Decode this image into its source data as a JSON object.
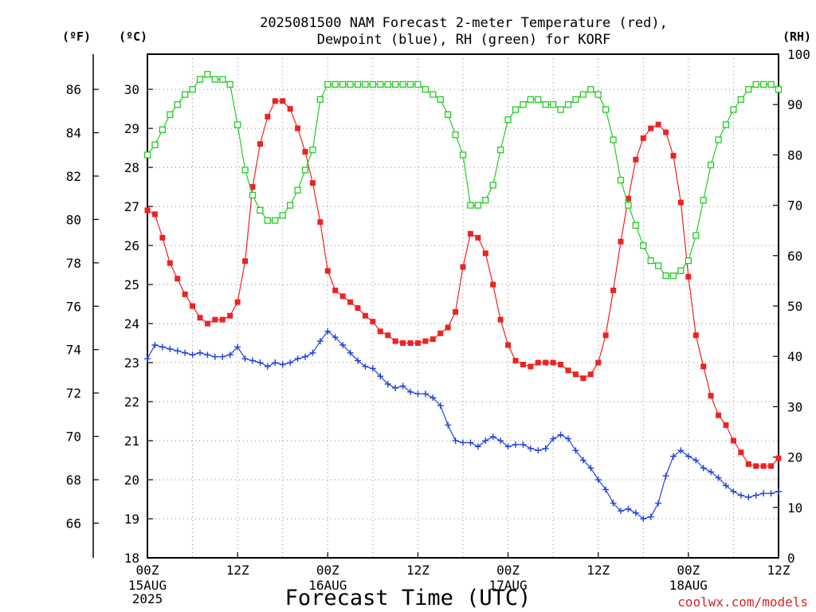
{
  "chart_data": {
    "type": "line",
    "title_line1": "2025081500 NAM Forecast 2-meter Temperature (red),",
    "title_line2": "Dewpoint (blue), RH (green) for KORF",
    "xlabel": "Forecast Time (UTC)",
    "credit": "coolwx.com/models",
    "unit_f": "(ºF)",
    "unit_c": "(ºC)",
    "unit_rh": "(RH)",
    "x_hours_range": [
      0,
      84
    ],
    "celsius_range": [
      18,
      30.9
    ],
    "fahrenheit_ticks": [
      "66",
      "68",
      "70",
      "72",
      "74",
      "76",
      "78",
      "80",
      "82",
      "84",
      "86"
    ],
    "celsius_ticks": [
      "18",
      "19",
      "20",
      "21",
      "22",
      "23",
      "24",
      "25",
      "26",
      "27",
      "28",
      "29",
      "30"
    ],
    "rh_range": [
      0,
      100
    ],
    "rh_ticks": [
      "0",
      "10",
      "20",
      "30",
      "40",
      "50",
      "60",
      "70",
      "80",
      "90",
      "100"
    ],
    "x_ticks": [
      {
        "h": 0,
        "label": "00Z"
      },
      {
        "h": 12,
        "label": "12Z"
      },
      {
        "h": 24,
        "label": "00Z"
      },
      {
        "h": 36,
        "label": "12Z"
      },
      {
        "h": 48,
        "label": "00Z"
      },
      {
        "h": 60,
        "label": "12Z"
      },
      {
        "h": 72,
        "label": "00Z"
      },
      {
        "h": 84,
        "label": "12Z"
      }
    ],
    "date_labels": [
      {
        "h": 0,
        "lines": [
          "15AUG",
          "2025"
        ]
      },
      {
        "h": 24,
        "lines": [
          "16AUG"
        ]
      },
      {
        "h": 48,
        "lines": [
          "17AUG"
        ]
      },
      {
        "h": 72,
        "lines": [
          "18AUG"
        ]
      }
    ],
    "grid": true,
    "series": [
      {
        "name": "Temperature",
        "color": "#ee2222",
        "marker": "square-filled",
        "x": [
          0,
          1,
          2,
          3,
          4,
          5,
          6,
          7,
          8,
          9,
          10,
          11,
          12,
          13,
          14,
          15,
          16,
          17,
          18,
          19,
          20,
          21,
          22,
          23,
          24,
          25,
          26,
          27,
          28,
          29,
          30,
          31,
          32,
          33,
          34,
          35,
          36,
          37,
          38,
          39,
          40,
          41,
          42,
          43,
          44,
          45,
          46,
          47,
          48,
          49,
          50,
          51,
          52,
          53,
          54,
          55,
          56,
          57,
          58,
          59,
          60,
          61,
          62,
          63,
          64,
          65,
          66,
          67,
          68,
          69,
          70,
          71,
          72,
          73,
          74,
          75,
          76,
          77,
          78,
          79,
          80,
          81,
          82,
          83,
          84
        ],
        "values": [
          26.9,
          26.8,
          26.2,
          25.55,
          25.15,
          24.75,
          24.45,
          24.15,
          24.0,
          24.1,
          24.1,
          24.2,
          24.55,
          25.6,
          27.5,
          28.6,
          29.3,
          29.7,
          29.7,
          29.5,
          29.0,
          28.4,
          27.6,
          26.6,
          25.35,
          24.85,
          24.7,
          24.55,
          24.4,
          24.2,
          24.05,
          23.8,
          23.7,
          23.55,
          23.5,
          23.5,
          23.5,
          23.55,
          23.6,
          23.75,
          23.9,
          24.3,
          25.45,
          26.3,
          26.2,
          25.8,
          25.0,
          24.1,
          23.45,
          23.05,
          22.95,
          22.9,
          23.0,
          23.0,
          23.0,
          22.95,
          22.8,
          22.7,
          22.6,
          22.7,
          23.0,
          23.7,
          24.85,
          26.1,
          27.2,
          28.2,
          28.75,
          29.0,
          29.1,
          28.9,
          28.3,
          27.1,
          25.2,
          23.7,
          22.9,
          22.15,
          21.65,
          21.4,
          21.0,
          20.7,
          20.4,
          20.35,
          20.35,
          20.35,
          20.55
        ]
      },
      {
        "name": "Dewpoint",
        "color": "#2244dd",
        "marker": "plus",
        "x": [
          0,
          1,
          2,
          3,
          4,
          5,
          6,
          7,
          8,
          9,
          10,
          11,
          12,
          13,
          14,
          15,
          16,
          17,
          18,
          19,
          20,
          21,
          22,
          23,
          24,
          25,
          26,
          27,
          28,
          29,
          30,
          31,
          32,
          33,
          34,
          35,
          36,
          37,
          38,
          39,
          40,
          41,
          42,
          43,
          44,
          45,
          46,
          47,
          48,
          49,
          50,
          51,
          52,
          53,
          54,
          55,
          56,
          57,
          58,
          59,
          60,
          61,
          62,
          63,
          64,
          65,
          66,
          67,
          68,
          69,
          70,
          71,
          72,
          73,
          74,
          75,
          76,
          77,
          78,
          79,
          80,
          81,
          82,
          83,
          84
        ],
        "values": [
          23.1,
          23.45,
          23.4,
          23.35,
          23.3,
          23.25,
          23.2,
          23.25,
          23.2,
          23.15,
          23.15,
          23.2,
          23.4,
          23.1,
          23.05,
          23.0,
          22.9,
          23.0,
          22.95,
          23.0,
          23.1,
          23.15,
          23.25,
          23.55,
          23.8,
          23.65,
          23.45,
          23.25,
          23.05,
          22.9,
          22.85,
          22.65,
          22.45,
          22.35,
          22.4,
          22.25,
          22.2,
          22.2,
          22.1,
          21.9,
          21.4,
          21.0,
          20.95,
          20.95,
          20.85,
          21.0,
          21.1,
          21.0,
          20.85,
          20.9,
          20.9,
          20.8,
          20.75,
          20.8,
          21.05,
          21.15,
          21.05,
          20.75,
          20.5,
          20.3,
          20.0,
          19.75,
          19.4,
          19.2,
          19.25,
          19.15,
          19.0,
          19.05,
          19.4,
          20.1,
          20.6,
          20.75,
          20.6,
          20.5,
          20.3,
          20.2,
          20.05,
          19.85,
          19.7,
          19.6,
          19.55,
          19.6,
          19.65,
          19.65,
          19.7
        ]
      },
      {
        "name": "RH",
        "color": "#22cc22",
        "marker": "square-open",
        "axis": "right",
        "x": [
          0,
          1,
          2,
          3,
          4,
          5,
          6,
          7,
          8,
          9,
          10,
          11,
          12,
          13,
          14,
          15,
          16,
          17,
          18,
          19,
          20,
          21,
          22,
          23,
          24,
          25,
          26,
          27,
          28,
          29,
          30,
          31,
          32,
          33,
          34,
          35,
          36,
          37,
          38,
          39,
          40,
          41,
          42,
          43,
          44,
          45,
          46,
          47,
          48,
          49,
          50,
          51,
          52,
          53,
          54,
          55,
          56,
          57,
          58,
          59,
          60,
          61,
          62,
          63,
          64,
          65,
          66,
          67,
          68,
          69,
          70,
          71,
          72,
          73,
          74,
          75,
          76,
          77,
          78,
          79,
          80,
          81,
          82,
          83,
          84
        ],
        "values": [
          80,
          82,
          85,
          88,
          90,
          92,
          93,
          95,
          96,
          95,
          95,
          94,
          86,
          77,
          72,
          69,
          67,
          67,
          68,
          70,
          73,
          77,
          81,
          91,
          94,
          94,
          94,
          94,
          94,
          94,
          94,
          94,
          94,
          94,
          94,
          94,
          94,
          93,
          92,
          91,
          88,
          84,
          80,
          70,
          70,
          71,
          74,
          81,
          87,
          89,
          90,
          91,
          91,
          90,
          90,
          89,
          90,
          91,
          92,
          93,
          92,
          89,
          83,
          75,
          70,
          66,
          62,
          59,
          58,
          56,
          56,
          57,
          59,
          64,
          71,
          78,
          83,
          86,
          89,
          91,
          93,
          94,
          94,
          94,
          93
        ]
      }
    ]
  }
}
